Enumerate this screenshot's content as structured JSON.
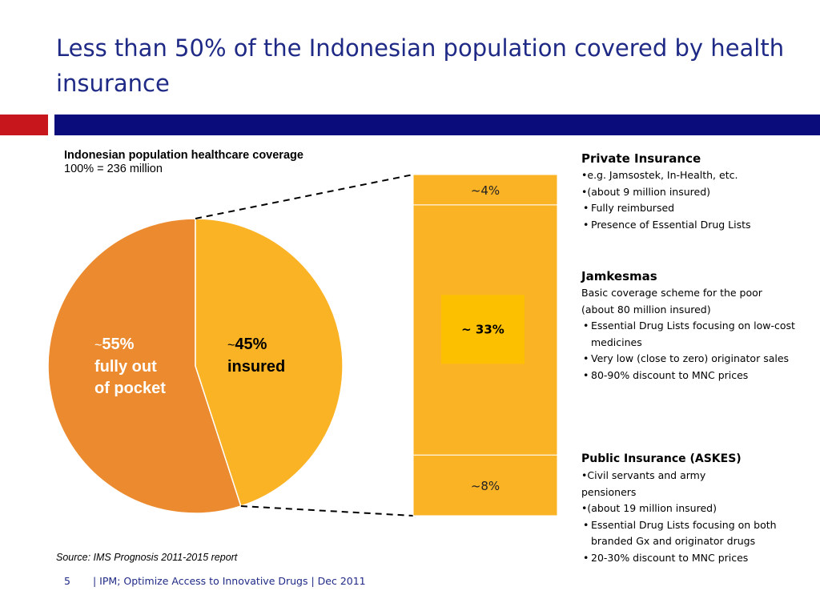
{
  "slide": {
    "title": "Less than 50% of the Indonesian population covered by health insurance",
    "page_number": "5",
    "footer": "| IPM; Optimize Access to Innovative Drugs | Dec 2011",
    "source": "Source: IMS Prognosis 2011-2015 report"
  },
  "colors": {
    "title": "#1f2a86",
    "accent_red": "#c8161d",
    "accent_navy": "#0b0c7c",
    "out_of_pocket": "#eb8a2e",
    "insured": "#fbb326",
    "jamkesmas_box": "#fdc000"
  },
  "chart_data": {
    "type": "pie",
    "title": "Indonesian population healthcare coverage",
    "subtitle": "100% = 236 million",
    "slices": [
      {
        "name": "insured",
        "value": 45,
        "label_prefix": "~",
        "label_value": "45%",
        "label_text": "insured"
      },
      {
        "name": "fully out of pocket",
        "value": 55,
        "label_prefix": "~",
        "label_value": "55%",
        "label_text_1": "fully out",
        "label_text_2": "of pocket"
      }
    ],
    "breakdown": {
      "type": "stacked-bar",
      "segments": [
        {
          "label": "~4%",
          "value": 4
        },
        {
          "label": "~ 33%",
          "value": 33
        },
        {
          "label": "~8%",
          "value": 8
        }
      ]
    }
  },
  "info": {
    "private": {
      "heading": "Private Insurance",
      "lines": [
        "•e.g. Jamsostek, In-Health, etc.",
        "•(about 9 million insured)"
      ],
      "bullets": [
        "Fully reimbursed",
        "Presence of Essential Drug Lists"
      ]
    },
    "jamkesmas": {
      "heading": "Jamkesmas",
      "lines": [
        "Basic coverage scheme for the poor",
        "(about 80 million insured)"
      ],
      "bullets": [
        "Essential Drug Lists focusing on low-cost medicines",
        "Very low (close to zero) originator sales",
        "80-90% discount to MNC prices"
      ]
    },
    "askes": {
      "heading": "Public Insurance (ASKES)",
      "lines": [
        "•Civil servants and army",
        "pensioners",
        "•(about 19 million insured)"
      ],
      "bullets": [
        "Essential Drug Lists focusing on both branded Gx and originator drugs",
        "20-30% discount to MNC prices"
      ]
    }
  }
}
